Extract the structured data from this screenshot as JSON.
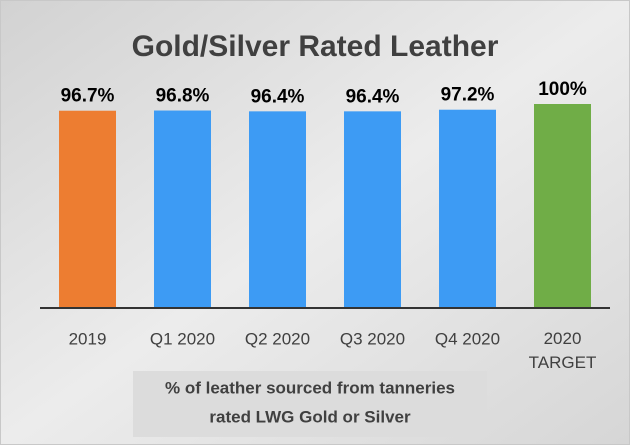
{
  "chart_data": {
    "type": "bar",
    "title": "Gold/Silver Rated Leather",
    "categories": [
      "2019",
      "Q1 2020",
      "Q2 2020",
      "Q3 2020",
      "Q4 2020",
      "2020 TARGET"
    ],
    "values": [
      96.7,
      96.8,
      96.4,
      96.4,
      97.2,
      100
    ],
    "value_labels": [
      "96.7%",
      "96.8%",
      "96.4%",
      "96.4%",
      "97.2%",
      "100%"
    ],
    "colors": [
      "#ed7d31",
      "#3d9bf4",
      "#3d9bf4",
      "#3d9bf4",
      "#3d9bf4",
      "#70ad47"
    ],
    "xlabel": [
      "% of leather sourced from tanneries",
      "rated LWG Gold or Silver"
    ],
    "ylim": [
      0,
      100
    ]
  }
}
